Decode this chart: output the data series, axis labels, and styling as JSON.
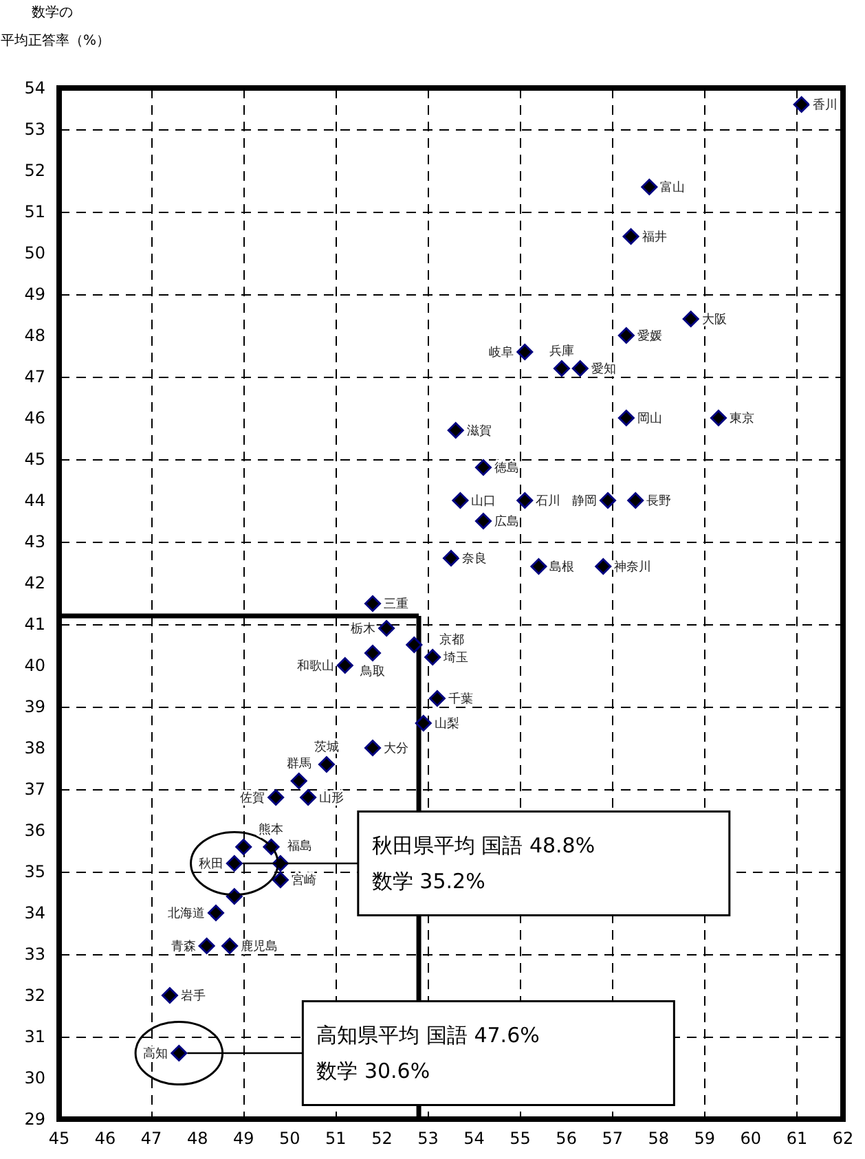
{
  "chart_data": {
    "type": "scatter",
    "ylabel": "平均正答率（%）",
    "x": [
      61.1,
      57.8,
      57.4,
      58.7,
      57.3,
      55.1,
      55.9,
      56.3,
      57.3,
      59.3,
      53.6,
      54.2,
      53.7,
      55.1,
      56.9,
      57.5,
      54.2,
      53.5,
      55.4,
      56.8,
      51.8,
      52.1,
      52.7,
      51.8,
      53.1,
      51.2,
      53.2,
      52.9,
      51.8,
      50.8,
      50.2,
      49.7,
      50.4,
      49.0,
      49.6,
      48.8,
      49.8,
      49.8,
      48.8,
      48.4,
      48.2,
      48.7,
      47.4,
      47.6
    ],
    "series": [
      {
        "color": "#000080",
        "values": [
          53.6,
          51.6,
          50.4,
          48.4,
          48.0,
          47.6,
          47.2,
          47.2,
          46.0,
          46.0,
          45.7,
          44.8,
          44.0,
          44.0,
          44.0,
          44.0,
          43.5,
          42.6,
          42.4,
          42.4,
          41.5,
          40.9,
          40.5,
          40.3,
          40.2,
          40.0,
          39.2,
          38.6,
          38.0,
          37.6,
          37.2,
          36.8,
          36.8,
          35.6,
          35.6,
          35.2,
          35.2,
          34.8,
          34.4,
          34.0,
          33.2,
          33.2,
          32.0,
          30.6
        ]
      }
    ],
    "xlim": [
      45,
      62
    ],
    "xticks": [
      45,
      46,
      47,
      48,
      49,
      50,
      51,
      52,
      53,
      54,
      55,
      56,
      57,
      58,
      59,
      60,
      61,
      62
    ],
    "ylim": [
      29,
      54
    ],
    "yticks": [
      29,
      30,
      31,
      32,
      33,
      34,
      35,
      36,
      37,
      38,
      39,
      40,
      41,
      42,
      43,
      44,
      45,
      46,
      47,
      48,
      49,
      50,
      51,
      52,
      53,
      54
    ],
    "grid": true,
    "marker": "diamond",
    "ref_lines": [
      {
        "axis": "x",
        "value": 52.8
      },
      {
        "axis": "y",
        "value": 41.2
      }
    ],
    "annotations": [
      "数学の",
      {
        "text": "秋田県平均 国語 48.8%\n数学 35.2%",
        "x": 48.8,
        "y": 35.2
      },
      {
        "text": "高知県平均 国語 47.6%\n数学 30.6%",
        "x": 47.6,
        "y": 30.6
      },
      {
        "text": "香川",
        "x": 61.1,
        "y": 53.6
      },
      {
        "text": "富山",
        "x": 57.8,
        "y": 51.6
      },
      {
        "text": "福井",
        "x": 57.4,
        "y": 50.4
      },
      {
        "text": "大阪",
        "x": 58.7,
        "y": 48.4
      },
      {
        "text": "愛媛",
        "x": 57.3,
        "y": 48.0
      },
      {
        "text": "岐阜",
        "x": 55.1,
        "y": 47.6
      },
      {
        "text": "兵庫",
        "x": 55.9,
        "y": 47.2
      },
      {
        "text": "愛知",
        "x": 56.3,
        "y": 47.2
      },
      {
        "text": "岡山",
        "x": 57.3,
        "y": 46.0
      },
      {
        "text": "東京",
        "x": 59.3,
        "y": 46.0
      },
      {
        "text": "滋賀",
        "x": 53.6,
        "y": 45.7
      },
      {
        "text": "徳島",
        "x": 54.2,
        "y": 44.8
      },
      {
        "text": "山口",
        "x": 53.7,
        "y": 44.0
      },
      {
        "text": "石川",
        "x": 55.1,
        "y": 44.0
      },
      {
        "text": "静岡",
        "x": 56.9,
        "y": 44.0
      },
      {
        "text": "長野",
        "x": 57.5,
        "y": 44.0
      },
      {
        "text": "広島",
        "x": 54.2,
        "y": 43.5
      },
      {
        "text": "奈良",
        "x": 53.5,
        "y": 42.6
      },
      {
        "text": "島根",
        "x": 55.4,
        "y": 42.4
      },
      {
        "text": "神奈川",
        "x": 56.8,
        "y": 42.4
      },
      {
        "text": "三重",
        "x": 51.8,
        "y": 41.5
      },
      {
        "text": "栃木",
        "x": 52.1,
        "y": 40.9
      },
      {
        "text": "鳥取",
        "x": 51.8,
        "y": 40.3
      },
      {
        "text": "埼玉",
        "x": 53.1,
        "y": 40.2
      },
      {
        "text": "京都",
        "x": 53.1,
        "y": 40.2
      },
      {
        "text": "和歌山",
        "x": 51.2,
        "y": 40.0
      },
      {
        "text": "千葉",
        "x": 53.2,
        "y": 39.2
      },
      {
        "text": "山梨",
        "x": 52.9,
        "y": 38.6
      },
      {
        "text": "大分",
        "x": 51.8,
        "y": 38.0
      },
      {
        "text": "茨城",
        "x": 50.8,
        "y": 37.6
      },
      {
        "text": "群馬",
        "x": 50.2,
        "y": 37.2
      },
      {
        "text": "佐賀",
        "x": 49.7,
        "y": 36.8
      },
      {
        "text": "山形",
        "x": 50.4,
        "y": 36.8
      },
      {
        "text": "熊本",
        "x": 49.6,
        "y": 35.6
      },
      {
        "text": "秋田",
        "x": 48.8,
        "y": 35.2
      },
      {
        "text": "福島",
        "x": 49.8,
        "y": 35.2
      },
      {
        "text": "宮崎",
        "x": 49.8,
        "y": 34.8
      },
      {
        "text": "北海道",
        "x": 48.4,
        "y": 34.0
      },
      {
        "text": "青森",
        "x": 48.2,
        "y": 33.2
      },
      {
        "text": "鹿児島",
        "x": 48.7,
        "y": 33.2
      },
      {
        "text": "岩手",
        "x": 47.4,
        "y": 32.0
      },
      {
        "text": "高知",
        "x": 47.6,
        "y": 30.6
      }
    ]
  }
}
